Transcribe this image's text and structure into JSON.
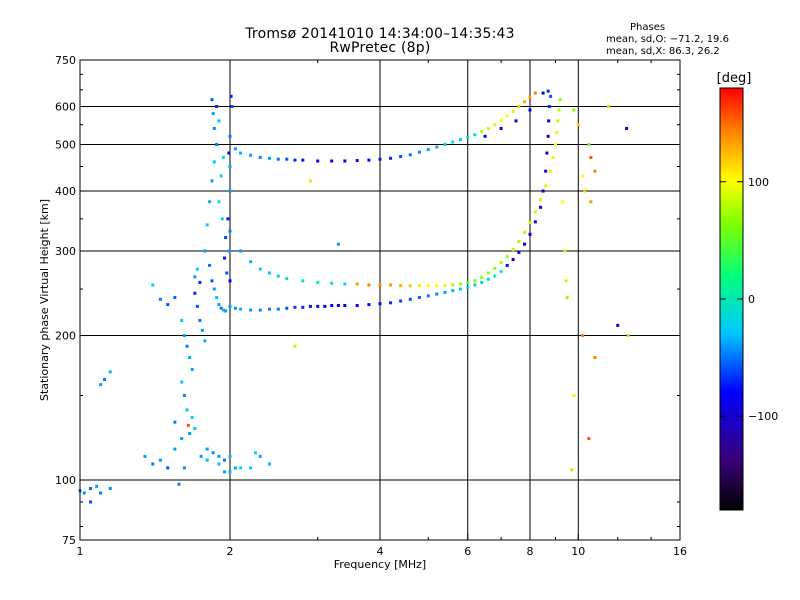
{
  "title": "Tromsø 20141010 14:34:00–14:35:43",
  "subtitle": "RwPretec (8p)",
  "phase_panel": {
    "title": "Phases",
    "line1": "mean, sd,O: −71.2, 19.6",
    "line2": "mean, sd,X:  86.3, 26.2"
  },
  "colorbar": {
    "label": "[deg]",
    "ticks": [
      {
        "value": 100,
        "label": "100"
      },
      {
        "value": 0,
        "label": "0"
      },
      {
        "value": -100,
        "label": "−100"
      }
    ],
    "range": [
      -180,
      180
    ]
  },
  "colors": {
    "axis": "#000000",
    "grid": "#000000",
    "background": "#ffffff"
  },
  "chart_data": {
    "type": "scatter",
    "xlabel": "Frequency [MHz]",
    "ylabel": "Stationary phase Virtual Height [km]",
    "xscale": "log",
    "yscale": "log",
    "xlim": [
      1,
      16
    ],
    "ylim": [
      75,
      750
    ],
    "grid": true,
    "x_ticks": [
      {
        "value": 1,
        "label": "1"
      },
      {
        "value": 2,
        "label": "2"
      },
      {
        "value": 4,
        "label": "4"
      },
      {
        "value": 6,
        "label": "6"
      },
      {
        "value": 8,
        "label": "8"
      },
      {
        "value": 10,
        "label": "10"
      },
      {
        "value": 16,
        "label": "16"
      }
    ],
    "y_ticks": [
      {
        "value": 75,
        "label": "75"
      },
      {
        "value": 100,
        "label": "100"
      },
      {
        "value": 200,
        "label": "200"
      },
      {
        "value": 300,
        "label": "300"
      },
      {
        "value": 400,
        "label": "400"
      },
      {
        "value": 500,
        "label": "500"
      },
      {
        "value": 600,
        "label": "600"
      },
      {
        "value": 750,
        "label": "750"
      }
    ],
    "color_value": "phase [deg]",
    "points": [
      [
        1.0,
        95,
        -70
      ],
      [
        1.02,
        94,
        -65
      ],
      [
        1.05,
        96,
        -75
      ],
      [
        1.08,
        97,
        -60
      ],
      [
        1.1,
        94,
        -70
      ],
      [
        1.05,
        90,
        -80
      ],
      [
        1.15,
        96,
        -65
      ],
      [
        1.1,
        158,
        -60
      ],
      [
        1.12,
        162,
        -70
      ],
      [
        1.15,
        168,
        -55
      ],
      [
        1.35,
        112,
        -60
      ],
      [
        1.4,
        108,
        -70
      ],
      [
        1.45,
        110,
        -60
      ],
      [
        1.5,
        106,
        -80
      ],
      [
        1.55,
        116,
        -60
      ],
      [
        1.55,
        132,
        -70
      ],
      [
        1.6,
        122,
        -60
      ],
      [
        1.58,
        98,
        -70
      ],
      [
        1.62,
        106,
        -65
      ],
      [
        1.4,
        255,
        -40
      ],
      [
        1.45,
        238,
        -70
      ],
      [
        1.5,
        232,
        -80
      ],
      [
        1.55,
        240,
        -75
      ],
      [
        1.6,
        215,
        -50
      ],
      [
        1.62,
        200,
        -60
      ],
      [
        1.64,
        190,
        -70
      ],
      [
        1.66,
        180,
        -55
      ],
      [
        1.68,
        170,
        -60
      ],
      [
        1.6,
        160,
        -50
      ],
      [
        1.62,
        150,
        -65
      ],
      [
        1.64,
        140,
        -50
      ],
      [
        1.66,
        125,
        -60
      ],
      [
        1.65,
        130,
        160
      ],
      [
        1.68,
        135,
        -40
      ],
      [
        1.7,
        128,
        -50
      ],
      [
        1.7,
        245,
        -90
      ],
      [
        1.72,
        230,
        -80
      ],
      [
        1.74,
        215,
        -70
      ],
      [
        1.76,
        205,
        -60
      ],
      [
        1.78,
        195,
        -55
      ],
      [
        1.7,
        265,
        -60
      ],
      [
        1.72,
        275,
        -50
      ],
      [
        1.74,
        258,
        -90
      ],
      [
        1.75,
        112,
        -60
      ],
      [
        1.8,
        110,
        -55
      ],
      [
        1.85,
        114,
        -65
      ],
      [
        1.9,
        112,
        -60
      ],
      [
        1.95,
        110,
        -70
      ],
      [
        2.0,
        112,
        -55
      ],
      [
        1.8,
        116,
        -60
      ],
      [
        1.9,
        108,
        -50
      ],
      [
        1.95,
        104,
        -60
      ],
      [
        2.0,
        104,
        -55
      ],
      [
        2.05,
        106,
        -60
      ],
      [
        2.1,
        106,
        -45
      ],
      [
        2.2,
        106,
        -50
      ],
      [
        2.25,
        114,
        -40
      ],
      [
        2.3,
        112,
        -60
      ],
      [
        2.4,
        108,
        -55
      ],
      [
        1.78,
        300,
        -60
      ],
      [
        1.8,
        340,
        -50
      ],
      [
        1.82,
        380,
        -55
      ],
      [
        1.84,
        420,
        -60
      ],
      [
        1.86,
        460,
        -50
      ],
      [
        1.88,
        500,
        -70
      ],
      [
        1.86,
        540,
        -65
      ],
      [
        1.85,
        580,
        -60
      ],
      [
        1.84,
        620,
        -80
      ],
      [
        1.88,
        600,
        -90
      ],
      [
        1.9,
        560,
        -50
      ],
      [
        1.82,
        280,
        -70
      ],
      [
        1.84,
        260,
        -80
      ],
      [
        1.86,
        250,
        -60
      ],
      [
        1.88,
        240,
        -50
      ],
      [
        1.9,
        232,
        -60
      ],
      [
        1.92,
        228,
        -70
      ],
      [
        1.94,
        226,
        -55
      ],
      [
        1.96,
        225,
        -60
      ],
      [
        1.98,
        350,
        -90
      ],
      [
        1.96,
        320,
        -85
      ],
      [
        1.95,
        290,
        -95
      ],
      [
        1.97,
        270,
        -80
      ],
      [
        1.99,
        300,
        -60
      ],
      [
        2.0,
        330,
        -70
      ],
      [
        2.0,
        400,
        -60
      ],
      [
        2.0,
        450,
        -55
      ],
      [
        2.0,
        520,
        -70
      ],
      [
        2.02,
        600,
        -80
      ],
      [
        2.01,
        630,
        -95
      ],
      [
        1.99,
        480,
        -100
      ],
      [
        2.0,
        260,
        -100
      ],
      [
        1.92,
        430,
        -40
      ],
      [
        1.94,
        470,
        -30
      ],
      [
        1.9,
        380,
        -20
      ],
      [
        1.93,
        350,
        -30
      ],
      [
        2.0,
        230,
        -60
      ],
      [
        2.05,
        228,
        -65
      ],
      [
        2.1,
        227,
        -55
      ],
      [
        2.2,
        226,
        -60
      ],
      [
        2.3,
        226,
        -65
      ],
      [
        2.4,
        227,
        -70
      ],
      [
        2.5,
        227,
        -70
      ],
      [
        2.6,
        228,
        -80
      ],
      [
        2.7,
        229,
        -85
      ],
      [
        2.8,
        229,
        -90
      ],
      [
        2.9,
        230,
        -95
      ],
      [
        3.0,
        230,
        -100
      ],
      [
        3.1,
        230,
        -105
      ],
      [
        3.2,
        231,
        -100
      ],
      [
        3.3,
        231,
        -110
      ],
      [
        3.4,
        231,
        -105
      ],
      [
        3.6,
        231,
        -110
      ],
      [
        3.8,
        232,
        -100
      ],
      [
        4.0,
        233,
        -95
      ],
      [
        4.2,
        234,
        -90
      ],
      [
        4.4,
        236,
        -85
      ],
      [
        4.6,
        238,
        -80
      ],
      [
        4.8,
        240,
        -75
      ],
      [
        5.0,
        242,
        -70
      ],
      [
        5.2,
        244,
        -65
      ],
      [
        5.4,
        246,
        -60
      ],
      [
        5.6,
        248,
        -55
      ],
      [
        5.8,
        250,
        -50
      ],
      [
        6.0,
        252,
        -45
      ],
      [
        6.2,
        255,
        -40
      ],
      [
        6.4,
        258,
        -35
      ],
      [
        6.6,
        262,
        -30
      ],
      [
        6.8,
        266,
        -20
      ],
      [
        7.0,
        272,
        -15
      ],
      [
        7.2,
        280,
        -100
      ],
      [
        7.4,
        288,
        -105
      ],
      [
        7.6,
        298,
        -110
      ],
      [
        7.8,
        310,
        -115
      ],
      [
        8.0,
        325,
        -110
      ],
      [
        8.2,
        345,
        -115
      ],
      [
        8.4,
        370,
        -120
      ],
      [
        8.5,
        400,
        -115
      ],
      [
        8.6,
        440,
        -110
      ],
      [
        8.65,
        480,
        -120
      ],
      [
        8.7,
        520,
        -115
      ],
      [
        8.72,
        560,
        -100
      ],
      [
        8.75,
        600,
        -90
      ],
      [
        8.8,
        630,
        -80
      ],
      [
        2.1,
        300,
        -60
      ],
      [
        2.2,
        285,
        -55
      ],
      [
        2.3,
        275,
        -50
      ],
      [
        2.4,
        270,
        -45
      ],
      [
        2.5,
        266,
        -40
      ],
      [
        2.6,
        263,
        -30
      ],
      [
        2.8,
        260,
        -20
      ],
      [
        3.0,
        258,
        -10
      ],
      [
        3.2,
        257,
        -20
      ],
      [
        3.4,
        256,
        -40
      ],
      [
        3.6,
        256,
        140
      ],
      [
        3.8,
        255,
        150
      ],
      [
        4.0,
        255,
        145
      ],
      [
        4.2,
        255,
        140
      ],
      [
        4.4,
        254,
        135
      ],
      [
        4.6,
        254,
        120
      ],
      [
        4.8,
        254,
        110
      ],
      [
        5.0,
        254,
        100
      ],
      [
        5.2,
        254,
        95
      ],
      [
        5.4,
        254,
        85
      ],
      [
        5.6,
        255,
        60
      ],
      [
        5.8,
        256,
        40
      ],
      [
        6.0,
        258,
        30
      ],
      [
        6.2,
        260,
        40
      ],
      [
        6.4,
        264,
        45
      ],
      [
        6.6,
        270,
        50
      ],
      [
        6.8,
        276,
        50
      ],
      [
        7.0,
        284,
        55
      ],
      [
        7.2,
        292,
        55
      ],
      [
        7.4,
        302,
        60
      ],
      [
        7.6,
        314,
        60
      ],
      [
        7.8,
        328,
        65
      ],
      [
        8.0,
        344,
        65
      ],
      [
        8.2,
        362,
        70
      ],
      [
        8.4,
        384,
        75
      ],
      [
        8.6,
        410,
        80
      ],
      [
        8.8,
        440,
        85
      ],
      [
        8.9,
        470,
        90
      ],
      [
        9.0,
        500,
        95
      ],
      [
        9.05,
        530,
        80
      ],
      [
        9.1,
        560,
        70
      ],
      [
        9.15,
        590,
        60
      ],
      [
        9.2,
        620,
        50
      ],
      [
        9.3,
        380,
        100
      ],
      [
        9.4,
        300,
        70
      ],
      [
        9.45,
        260,
        60
      ],
      [
        9.5,
        240,
        50
      ],
      [
        2.05,
        490,
        -60
      ],
      [
        2.1,
        480,
        -55
      ],
      [
        2.2,
        475,
        -60
      ],
      [
        2.3,
        470,
        -65
      ],
      [
        2.4,
        468,
        -60
      ],
      [
        2.5,
        466,
        -70
      ],
      [
        2.6,
        466,
        -80
      ],
      [
        2.7,
        464,
        -90
      ],
      [
        2.8,
        464,
        -95
      ],
      [
        3.0,
        462,
        -100
      ],
      [
        3.2,
        462,
        -105
      ],
      [
        3.4,
        462,
        -110
      ],
      [
        3.6,
        463,
        -105
      ],
      [
        3.8,
        464,
        -100
      ],
      [
        4.0,
        466,
        -95
      ],
      [
        4.2,
        468,
        -90
      ],
      [
        4.4,
        472,
        -80
      ],
      [
        4.6,
        476,
        -70
      ],
      [
        4.8,
        482,
        -65
      ],
      [
        5.0,
        488,
        -60
      ],
      [
        5.2,
        494,
        -55
      ],
      [
        5.4,
        500,
        -50
      ],
      [
        5.6,
        506,
        -45
      ],
      [
        5.8,
        512,
        -40
      ],
      [
        6.0,
        518,
        -35
      ],
      [
        6.2,
        524,
        -30
      ],
      [
        6.4,
        532,
        60
      ],
      [
        6.6,
        540,
        70
      ],
      [
        6.8,
        550,
        80
      ],
      [
        7.0,
        562,
        90
      ],
      [
        7.2,
        574,
        100
      ],
      [
        7.4,
        586,
        110
      ],
      [
        7.6,
        600,
        120
      ],
      [
        7.8,
        614,
        130
      ],
      [
        8.0,
        628,
        140
      ],
      [
        8.2,
        640,
        150
      ],
      [
        6.5,
        520,
        -100
      ],
      [
        7.0,
        540,
        -110
      ],
      [
        7.5,
        560,
        -105
      ],
      [
        8.0,
        590,
        -100
      ],
      [
        8.5,
        640,
        -110
      ],
      [
        8.7,
        646,
        -90
      ],
      [
        10.5,
        500,
        30
      ],
      [
        10.6,
        470,
        160
      ],
      [
        10.8,
        440,
        150
      ],
      [
        10.6,
        380,
        140
      ],
      [
        10.3,
        400,
        120
      ],
      [
        10.2,
        430,
        100
      ],
      [
        10.2,
        200,
        150
      ],
      [
        10.5,
        122,
        160
      ],
      [
        9.8,
        590,
        40
      ],
      [
        10.0,
        550,
        120
      ],
      [
        9.8,
        150,
        80
      ],
      [
        9.7,
        105,
        60
      ],
      [
        11.5,
        600,
        60
      ],
      [
        12.0,
        210,
        -100
      ],
      [
        12.5,
        540,
        -120
      ],
      [
        12.6,
        200,
        40
      ],
      [
        10.8,
        180,
        150
      ],
      [
        2.7,
        190,
        60
      ],
      [
        2.9,
        420,
        70
      ],
      [
        3.3,
        310,
        -60
      ]
    ]
  }
}
